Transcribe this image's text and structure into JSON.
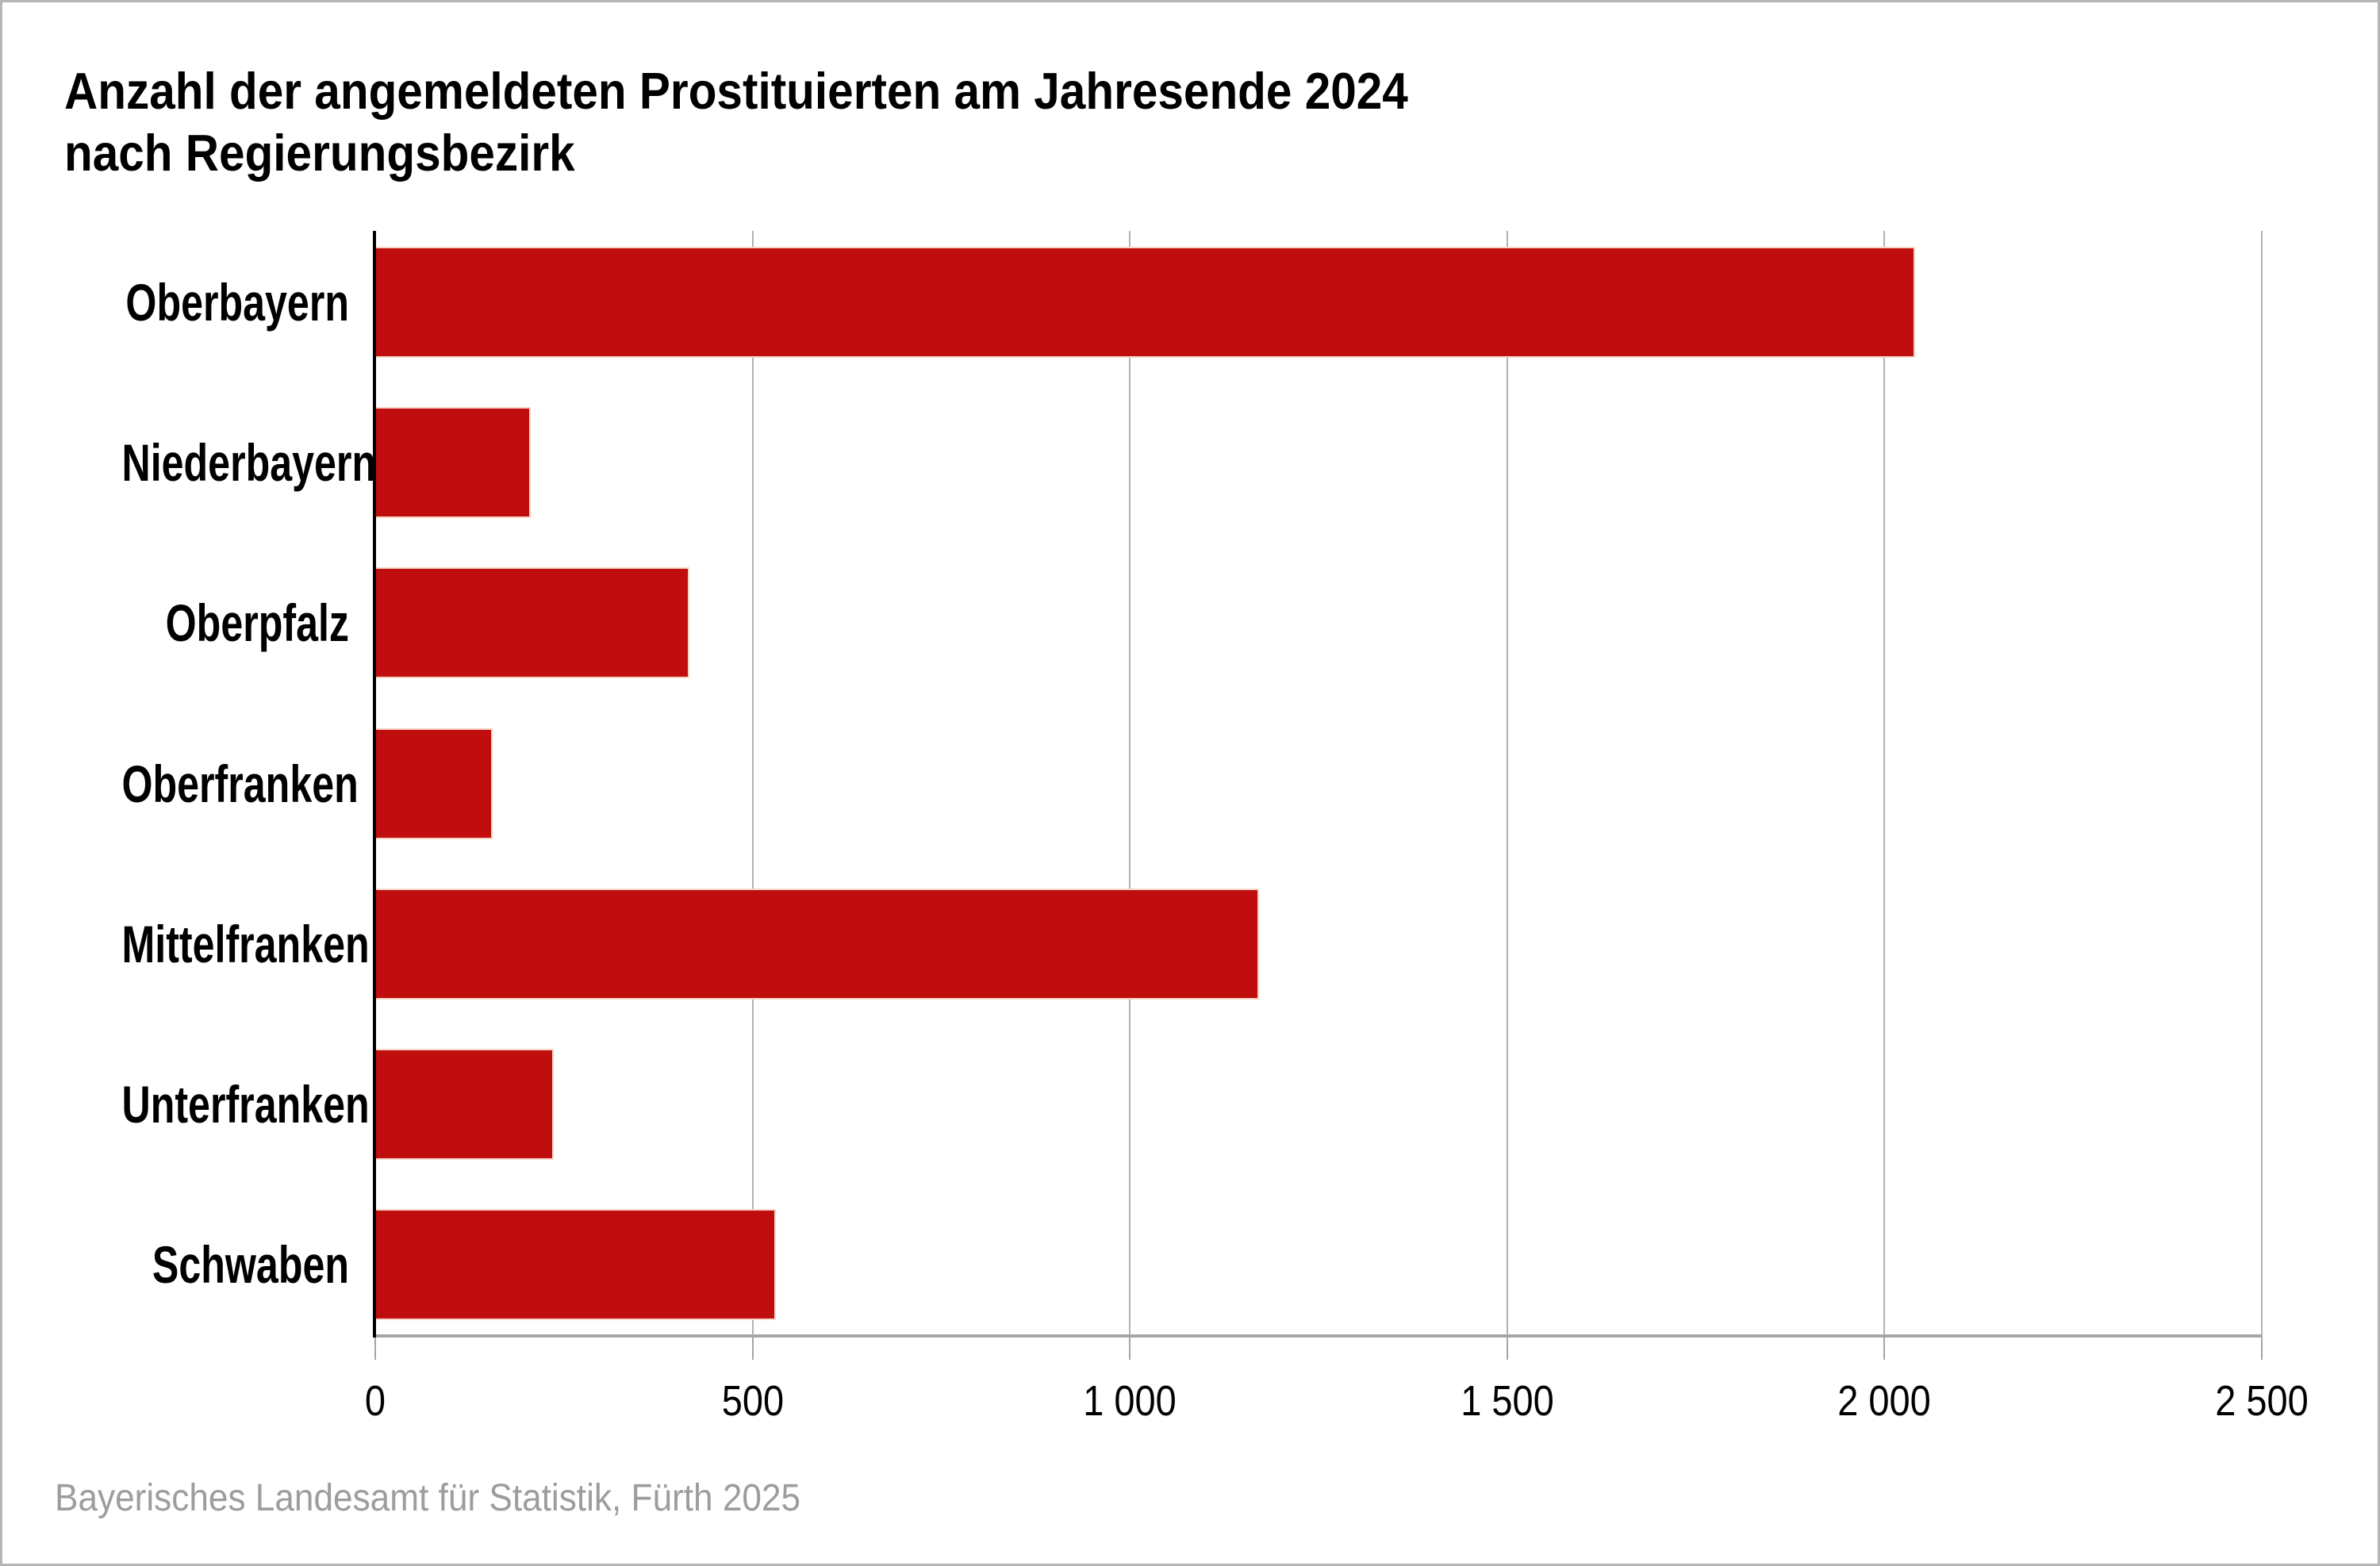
{
  "title": {
    "lines": [
      "Anzahl der angemeldeten Prostituierten am Jahresende 2024",
      "nach Regierungsbezirk"
    ]
  },
  "source_note": "Bayerisches Landesamt für Statistik, Fürth 2025",
  "colors": {
    "bar": "#c00d0e",
    "bar_fringe": "#f6d7c7",
    "gridline": "#b2b2b2",
    "baseline": "#a6a6a6",
    "axis": "#000000",
    "source_text": "#9d9d9d",
    "frame_border": "#b5b5b5"
  },
  "chart_data": {
    "type": "bar",
    "orientation": "horizontal",
    "title": "Anzahl der angemeldeten Prostituierten am Jahresende 2024 nach Regierungsbezirk",
    "categories": [
      "Oberbayern",
      "Niederbayern",
      "Oberpfalz",
      "Oberfranken",
      "Mittelfranken",
      "Unterfranken",
      "Schwaben"
    ],
    "values": [
      2040,
      205,
      415,
      155,
      1170,
      235,
      530
    ],
    "xlabel": "",
    "ylabel": "",
    "xlim": [
      0,
      2500
    ],
    "x_ticks": [
      0,
      500,
      1000,
      1500,
      2000,
      2500
    ],
    "x_tick_labels": [
      "0",
      "500",
      "1 000",
      "1 500",
      "2 000",
      "2 500"
    ],
    "grid": true,
    "legend": false,
    "bar_color": "#c00d0e",
    "source": "Bayerisches Landesamt für Statistik, Fürth 2025"
  }
}
